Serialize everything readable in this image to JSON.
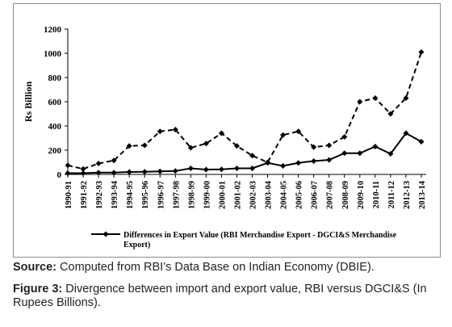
{
  "chart_data": {
    "type": "line",
    "ylabel": "Rs Billion",
    "ylim": [
      0,
      1200
    ],
    "yticks": [
      0,
      200,
      400,
      600,
      800,
      1000,
      1200
    ],
    "grid": false,
    "legend_position": "bottom",
    "categories": [
      "1990-91",
      "1991-92",
      "1992-93",
      "1993-94",
      "1994-95",
      "1995-96",
      "1996-97",
      "1997-98",
      "1998-99",
      "1999-00",
      "2000-01",
      "2001-02",
      "2002-03",
      "2003-04",
      "2004-05",
      "2005-06",
      "2006-07",
      "2007-08",
      "2008-09",
      "2009-10",
      "2010-11",
      "2011-12",
      "2012-13",
      "2013-14"
    ],
    "series": [
      {
        "name": "Differences in Export Value (RBI Merchandise Export - DGCI&S Merchandise Export)",
        "style": "solid-diamond",
        "color": "#000000",
        "values": [
          10,
          10,
          15,
          15,
          20,
          22,
          25,
          28,
          50,
          40,
          42,
          50,
          50,
          95,
          70,
          95,
          110,
          120,
          175,
          175,
          230,
          170,
          340,
          270
        ]
      },
      {
        "name": "",
        "style": "dashed-diamond",
        "color": "#000000",
        "values": [
          75,
          45,
          90,
          115,
          235,
          240,
          355,
          370,
          220,
          255,
          340,
          235,
          155,
          100,
          325,
          355,
          225,
          240,
          310,
          600,
          630,
          500,
          630,
          1010
        ]
      }
    ]
  },
  "legend": {
    "line1": "Differences in Export Value (RBI Merchandise Export - DGCI&S Merchandise",
    "line2": "Export)"
  },
  "source": {
    "label": "Source:",
    "text": " Computed from RBI’s Data Base on Indian Economy (DBIE)."
  },
  "figure": {
    "label": "Figure 3:",
    "text": " Divergence between import and export value, RBI versus DGCI&S (In Rupees Billions)."
  }
}
